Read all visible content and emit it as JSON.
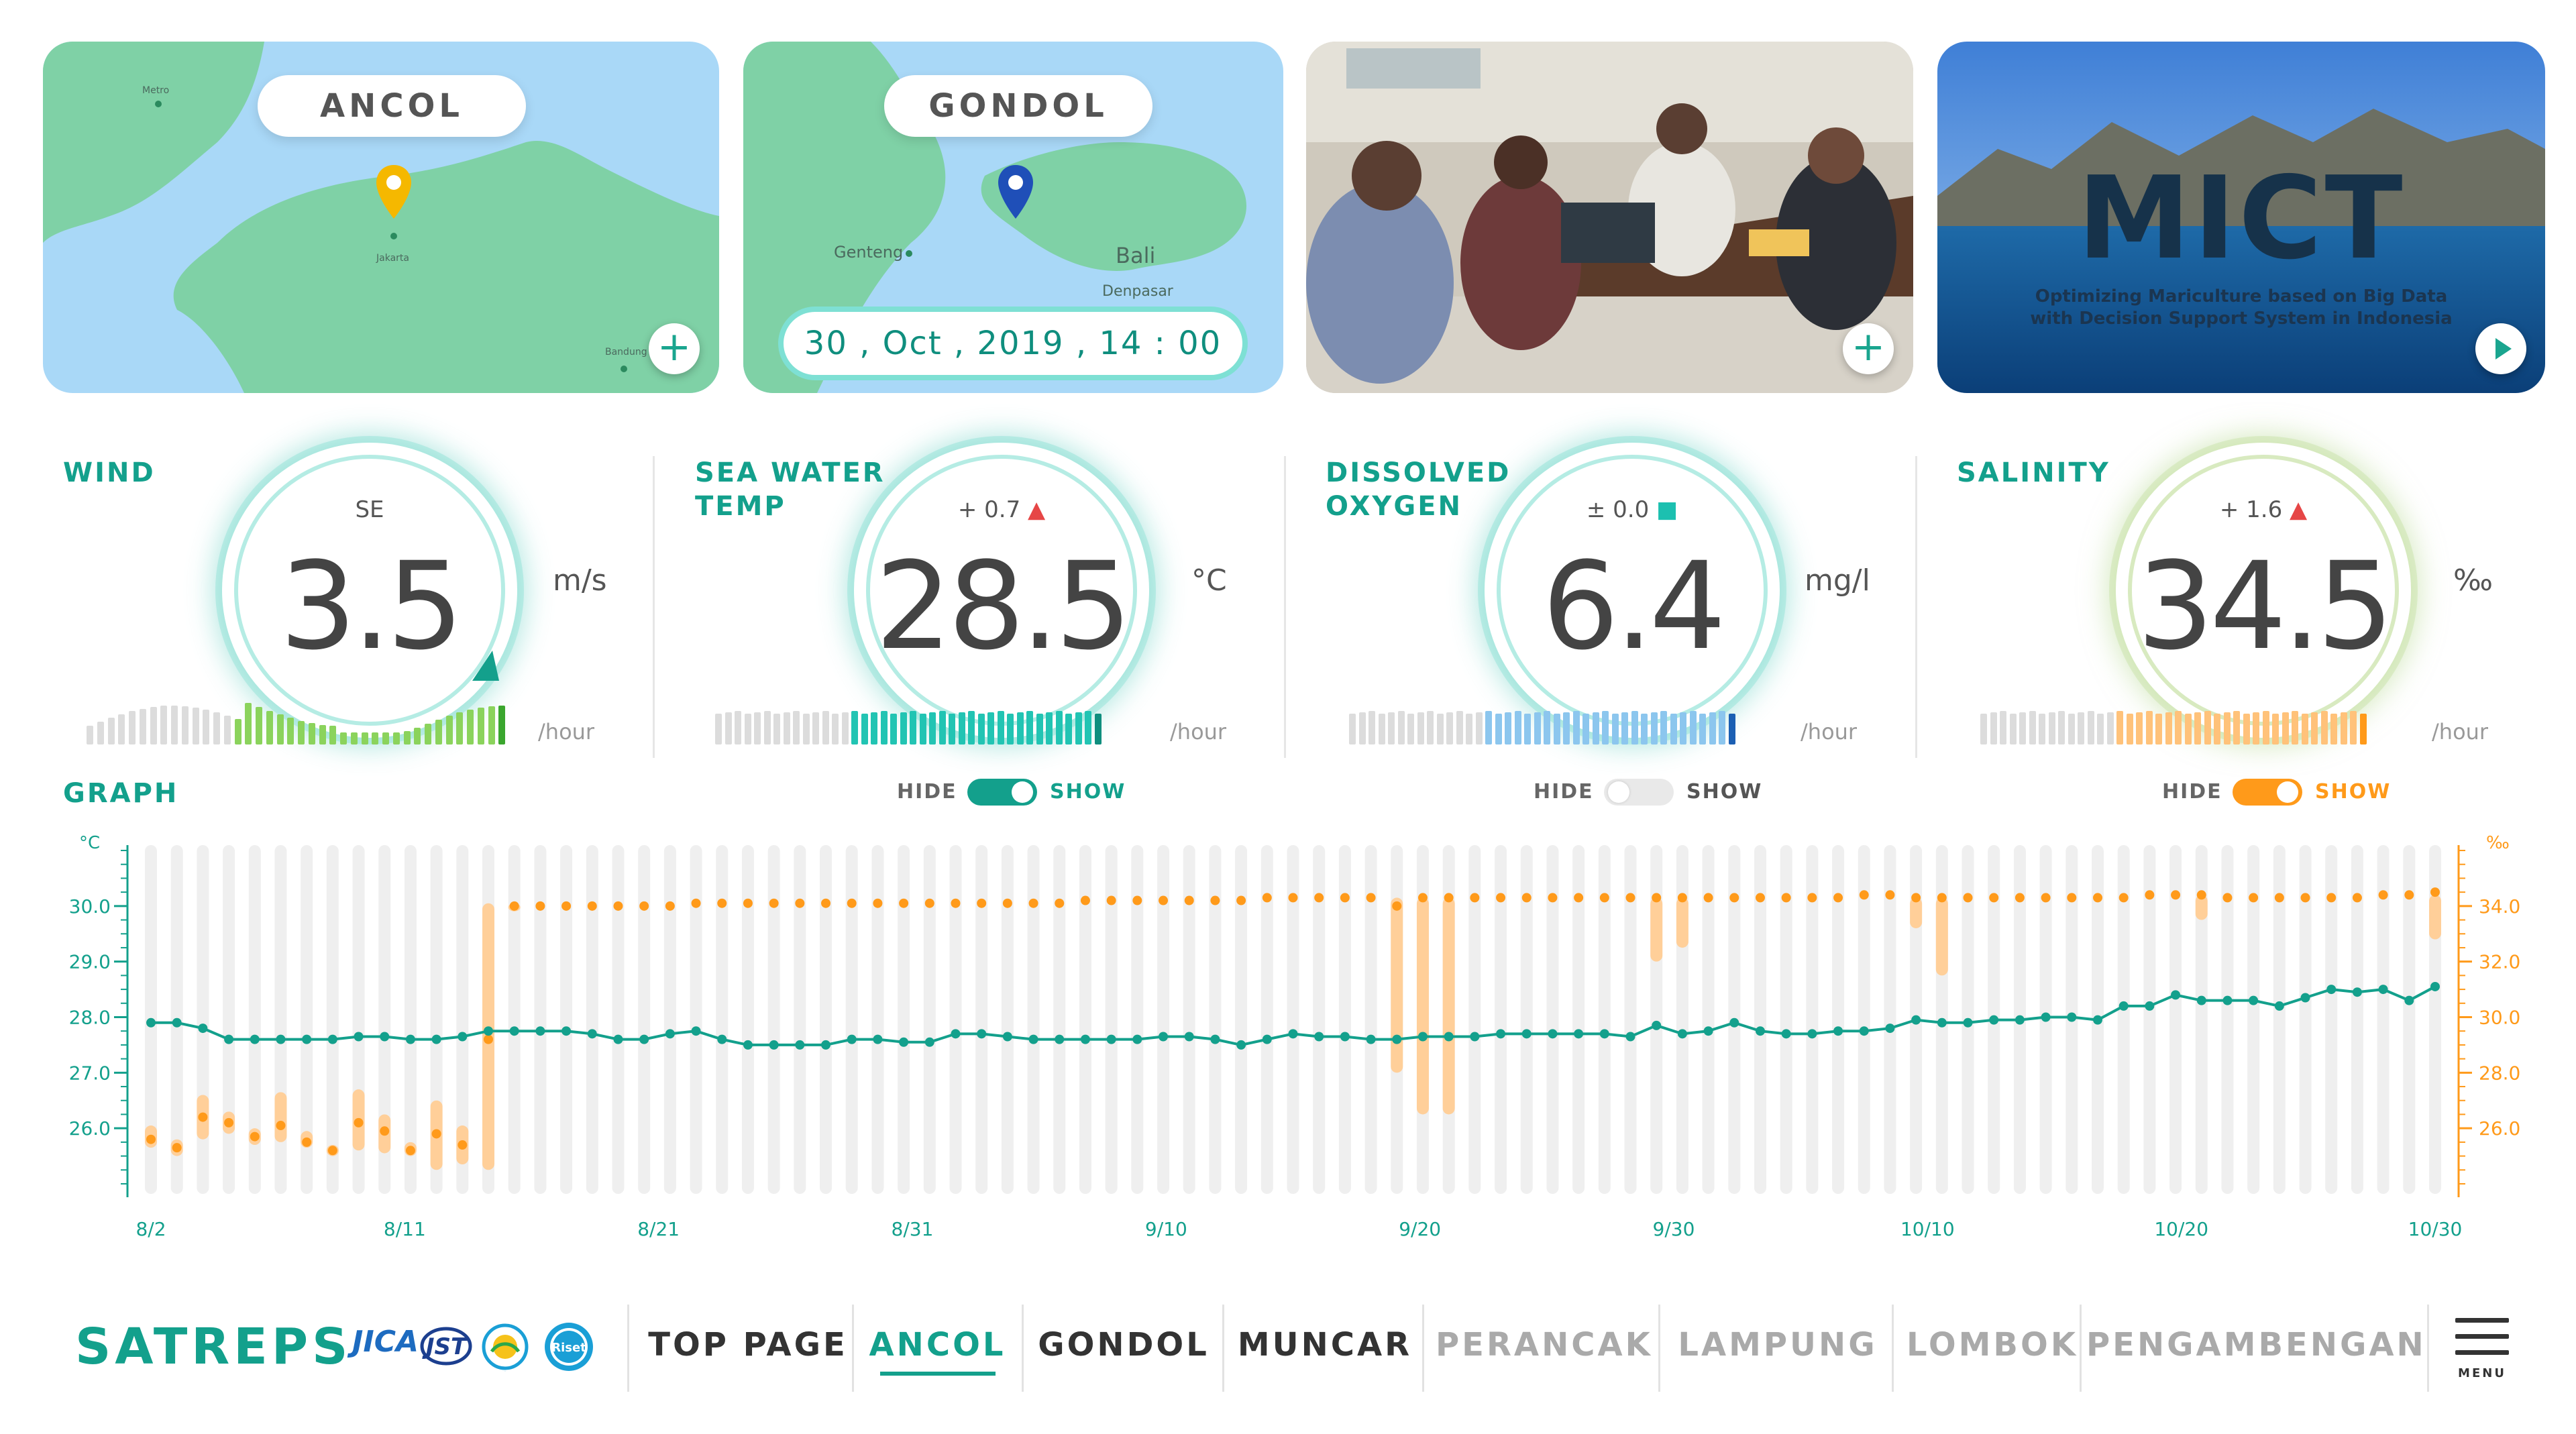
{
  "cards": {
    "ancol": {
      "name": "ANCOL",
      "places": {
        "metro": "Metro",
        "jakarta": "Jakarta",
        "bandung": "Bandung"
      },
      "pin_color": "#f5b800"
    },
    "gondol": {
      "name": "GONDOL",
      "places": {
        "genteng": "Genteng",
        "bali": "Bali",
        "denpasar": "Denpasar"
      },
      "datetime": "30 , Oct , 2019 , 14 : 00",
      "pin_color": "#1f4fb8"
    },
    "video": {
      "title": "MICT",
      "subtitle_line1": "Optimizing Mariculture based on Big Data",
      "subtitle_line2": "with Decision Support System in Indonesia"
    },
    "plus_icon": "+"
  },
  "metrics": {
    "wind": {
      "label": "WIND",
      "direction": "SE",
      "value": "3.5",
      "unit": "m/s",
      "per": "/hour",
      "bar_color": "#8bd35c"
    },
    "temp": {
      "label": "SEA WATER\nTEMP",
      "delta": "+ 0.7",
      "delta_icon": "▲",
      "value": "28.5",
      "unit": "°C",
      "per": "/hour",
      "bar_color": "#22c4b3"
    },
    "oxygen": {
      "label": "DISSOLVED\nOXYGEN",
      "delta": "± 0.0",
      "delta_icon": "■",
      "value": "6.4",
      "unit": "mg/l",
      "per": "/hour",
      "bar_color": "#8cc6ee"
    },
    "salinity": {
      "label": "SALINITY",
      "delta": "+ 1.6",
      "delta_icon": "▲",
      "value": "34.5",
      "unit": "‰",
      "per": "/hour",
      "bar_color": "#ffc27a"
    }
  },
  "graph": {
    "title": "GRAPH",
    "toggles": [
      {
        "hide": "HIDE",
        "show": "SHOW",
        "state": "on",
        "color": "#13a08c"
      },
      {
        "hide": "HIDE",
        "show": "SHOW",
        "state": "off",
        "color": "#e6e6e6"
      },
      {
        "hide": "HIDE",
        "show": "SHOW",
        "state": "on",
        "color": "#ff9a1a"
      }
    ]
  },
  "chart_data": {
    "type": "line",
    "left_axis": {
      "unit": "°C",
      "ticks": [
        "30.0",
        "29.0",
        "28.0",
        "27.0",
        "26.0"
      ],
      "range": [
        25.0,
        31.0
      ]
    },
    "right_axis": {
      "unit": "‰",
      "ticks": [
        "34.0",
        "32.0",
        "30.0",
        "28.0",
        "26.0"
      ],
      "range": [
        24.0,
        36.0
      ]
    },
    "x_ticks": [
      "8/2",
      "8/11",
      "8/21",
      "8/31",
      "9/10",
      "9/20",
      "9/30",
      "10/10",
      "10/20",
      "10/30"
    ],
    "series": [
      {
        "axis": "left",
        "color": "#13a08c",
        "values": [
          27.9,
          27.9,
          27.8,
          27.6,
          27.6,
          27.6,
          27.6,
          27.6,
          27.65,
          27.65,
          27.6,
          27.6,
          27.65,
          27.75,
          27.75,
          27.75,
          27.75,
          27.7,
          27.6,
          27.6,
          27.7,
          27.75,
          27.6,
          27.5,
          27.5,
          27.5,
          27.5,
          27.6,
          27.6,
          27.55,
          27.55,
          27.7,
          27.7,
          27.65,
          27.6,
          27.6,
          27.6,
          27.6,
          27.6,
          27.65,
          27.65,
          27.6,
          27.5,
          27.6,
          27.7,
          27.65,
          27.65,
          27.6,
          27.6,
          27.65,
          27.65,
          27.65,
          27.7,
          27.7,
          27.7,
          27.7,
          27.7,
          27.65,
          27.85,
          27.7,
          27.75,
          27.9,
          27.75,
          27.7,
          27.7,
          27.75,
          27.75,
          27.8,
          27.95,
          27.9,
          27.9,
          27.95,
          27.95,
          28.0,
          28.0,
          27.95,
          28.2,
          28.2,
          28.4,
          28.3,
          28.3,
          28.3,
          28.2,
          28.35,
          28.5,
          28.45,
          28.5,
          28.3,
          28.55
        ]
      },
      {
        "axis": "right",
        "color": "#ff9a1a",
        "values": [
          25.6,
          25.3,
          26.4,
          26.2,
          25.7,
          26.1,
          25.5,
          25.2,
          26.2,
          25.9,
          25.2,
          25.8,
          25.4,
          29.2,
          34.0,
          34.0,
          34.0,
          34.0,
          34.0,
          34.0,
          34.0,
          34.1,
          34.1,
          34.1,
          34.1,
          34.1,
          34.1,
          34.1,
          34.1,
          34.1,
          34.1,
          34.1,
          34.1,
          34.1,
          34.1,
          34.1,
          34.2,
          34.2,
          34.2,
          34.2,
          34.2,
          34.2,
          34.2,
          34.3,
          34.3,
          34.3,
          34.3,
          34.3,
          34.0,
          34.3,
          34.3,
          34.3,
          34.3,
          34.3,
          34.3,
          34.3,
          34.3,
          34.3,
          34.3,
          34.3,
          34.3,
          34.3,
          34.3,
          34.3,
          34.3,
          34.3,
          34.4,
          34.4,
          34.3,
          34.3,
          34.3,
          34.3,
          34.3,
          34.3,
          34.3,
          34.3,
          34.3,
          34.4,
          34.4,
          34.4,
          34.3,
          34.3,
          34.3,
          34.3,
          34.3,
          34.3,
          34.4,
          34.4,
          34.5
        ]
      }
    ],
    "salinity_ranges": [
      [
        25.3,
        26.1
      ],
      [
        25.0,
        25.6
      ],
      [
        25.6,
        27.2
      ],
      [
        25.8,
        26.6
      ],
      [
        25.4,
        26.0
      ],
      [
        25.5,
        27.3
      ],
      [
        25.3,
        25.9
      ],
      [
        25.0,
        25.4
      ],
      [
        25.2,
        27.4
      ],
      [
        25.1,
        26.5
      ],
      [
        25.0,
        25.5
      ],
      [
        24.5,
        27.0
      ],
      [
        24.7,
        26.1
      ],
      [
        24.5,
        34.1
      ],
      [
        33.9,
        34.1
      ]
    ]
  },
  "footer": {
    "brand": "SATREPS",
    "logos": [
      "JICA",
      "JST",
      "KKP",
      "Riset"
    ],
    "nav": [
      "TOP PAGE",
      "ANCOL",
      "GONDOL",
      "MUNCAR",
      "PERANCAK",
      "LAMPUNG",
      "LOMBOK",
      "PENGAMBENGAN"
    ],
    "active": "ANCOL",
    "menu_label": "MENU"
  }
}
